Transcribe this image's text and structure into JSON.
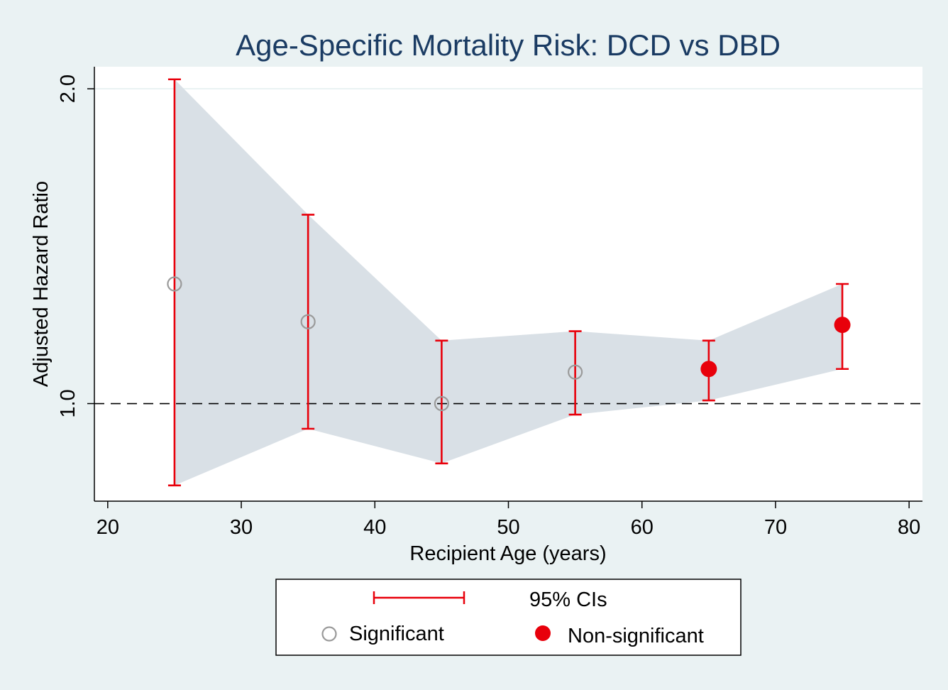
{
  "chart_data": {
    "type": "scatter",
    "title": "Age-Specific Mortality Risk: DCD vs DBD",
    "xlabel": "Recipient Age (years)",
    "ylabel": "Adjusted Hazard Ratio",
    "xlim": [
      19,
      81
    ],
    "ylim": [
      0.69,
      2.07
    ],
    "x_ticks": [
      "20",
      "30",
      "40",
      "50",
      "60",
      "70",
      "80"
    ],
    "y_ticks": [
      "1.0",
      "2.0"
    ],
    "grid": "horizontal at 2.0",
    "reference_line": 1.0,
    "legend_position": "bottom",
    "legend": {
      "ci_label": "95% CIs",
      "sig_label": "Significant",
      "nonsig_label": "Non-significant"
    },
    "colors": {
      "ci": "#e8000b",
      "band": "#d9e0e6",
      "significant": "#9a9a9a",
      "nonsignificant": "#e8000b",
      "title": "#1a3b63"
    },
    "series": [
      {
        "name": "Significant",
        "x": [
          25,
          35,
          45,
          55
        ],
        "y": [
          1.38,
          1.26,
          1.0,
          1.1
        ],
        "lower": [
          0.74,
          0.92,
          0.81,
          0.965
        ],
        "upper": [
          2.03,
          1.6,
          1.2,
          1.23
        ]
      },
      {
        "name": "Non-significant",
        "x": [
          65,
          75
        ],
        "y": [
          1.11,
          1.25
        ],
        "lower": [
          1.01,
          1.11
        ],
        "upper": [
          1.2,
          1.38
        ]
      }
    ]
  }
}
